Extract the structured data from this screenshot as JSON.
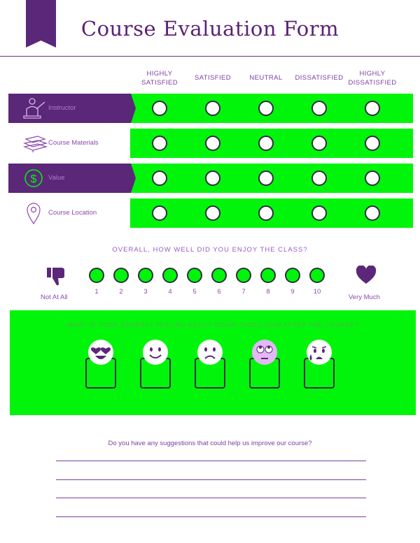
{
  "title": "Course Evaluation Form",
  "rating_columns": [
    "HIGHLY SATISFIED",
    "SATISFIED",
    "NEUTRAL",
    "DISSATISFIED",
    "HIGHLY DISSATISFIED"
  ],
  "rating_rows": [
    {
      "label": "Instructor",
      "icon": "teacher-icon",
      "style": "dark"
    },
    {
      "label": "Course Materials",
      "icon": "books-icon",
      "style": "light"
    },
    {
      "label": "Value",
      "icon": "dollar-icon",
      "style": "dark"
    },
    {
      "label": "Course Location",
      "icon": "location-pin-icon",
      "style": "light"
    }
  ],
  "enjoy": {
    "question": "OVERALL, HOW WELL DID YOU ENJOY THE CLASS?",
    "scale": [
      "1",
      "2",
      "3",
      "4",
      "5",
      "6",
      "7",
      "8",
      "9",
      "10"
    ],
    "low_label": "Not At All",
    "high_label": "Very Much",
    "low_icon": "thumbs-down-icon",
    "high_icon": "heart-icon"
  },
  "feeling": {
    "question": "WHAT IS YOUR GENERAL FEELING ABOUT DOING TAXES NOW AFTER THE COURSE?",
    "options": [
      "heart-eyes-emoji-icon",
      "smile-emoji-icon",
      "frown-emoji-icon",
      "eye-roll-emoji-icon",
      "crying-emoji-icon"
    ]
  },
  "suggestions": {
    "question": "Do you have any suggestions that could help us improve our course?"
  },
  "colors": {
    "purple": "#5b2779",
    "green": "#00f50b",
    "text_purple": "#7b3fa0"
  }
}
